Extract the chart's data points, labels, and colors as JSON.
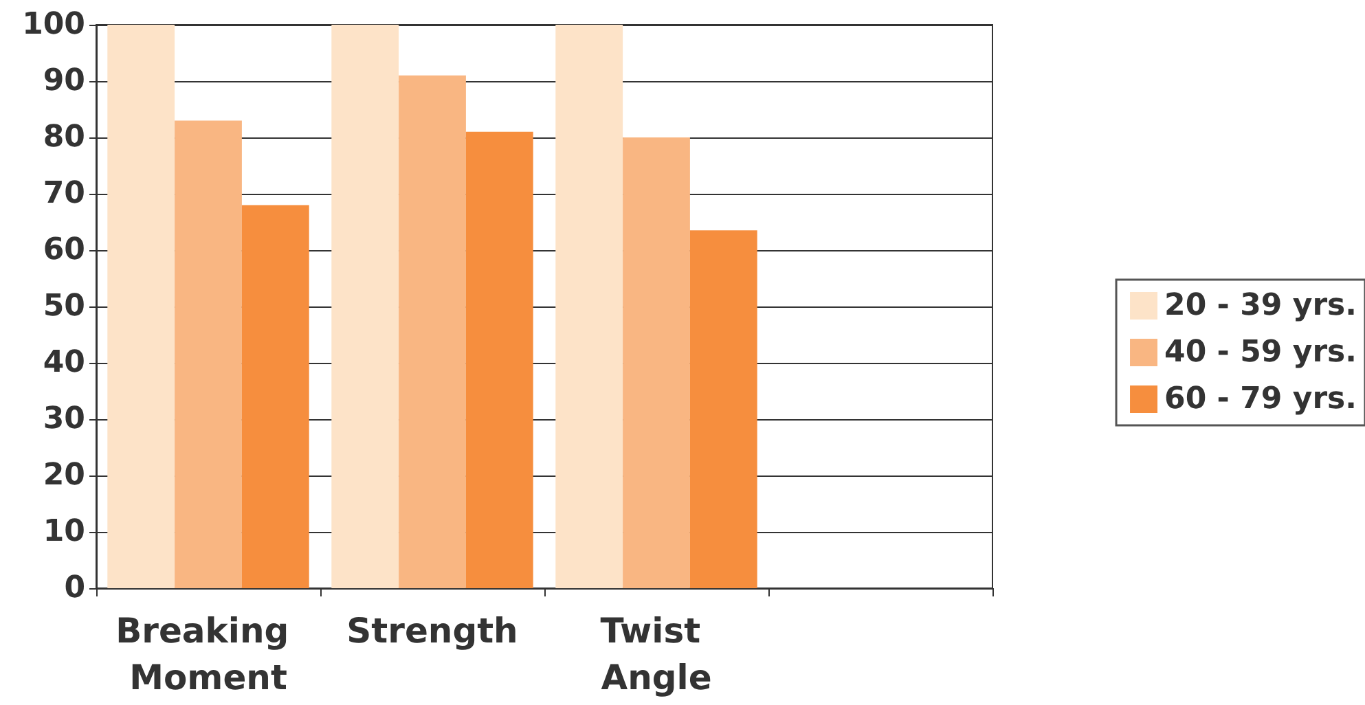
{
  "chart_data": {
    "type": "bar",
    "categories": [
      "Breaking Moment",
      "Strength",
      "Twist Angle",
      null
    ],
    "series": [
      {
        "name": "20 - 39 yrs.",
        "color": "#fde3c8",
        "values": [
          100,
          100,
          100,
          null
        ]
      },
      {
        "name": "40 - 59 yrs.",
        "color": "#f9b682",
        "values": [
          83,
          91,
          80,
          null
        ]
      },
      {
        "name": "60 - 79 yrs.",
        "color": "#f68e3e",
        "values": [
          68,
          81,
          63.5,
          null
        ]
      }
    ],
    "ylim": [
      0,
      100
    ],
    "yticks": [
      0,
      10,
      20,
      30,
      40,
      50,
      60,
      70,
      80,
      90,
      100
    ],
    "grid": "y",
    "legend": "right"
  }
}
